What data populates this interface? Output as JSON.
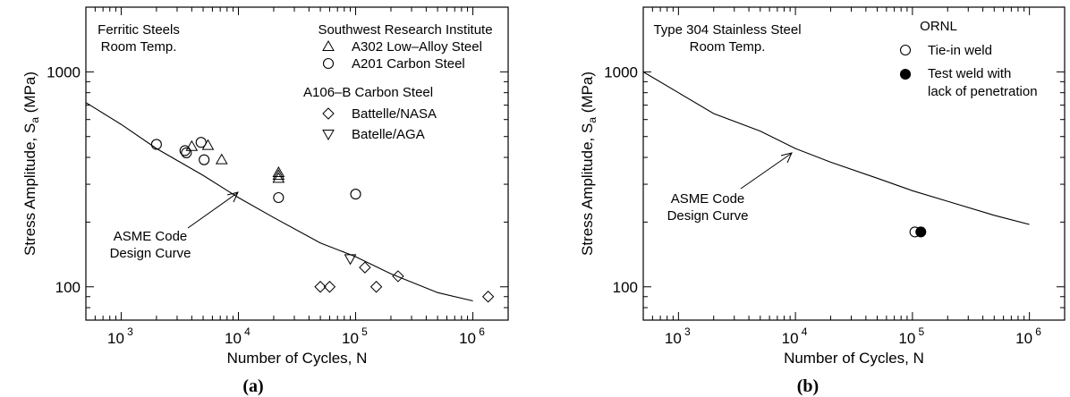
{
  "chart_data": [
    {
      "panel": "(a)",
      "type": "scatter",
      "xlabel": "Number of Cycles, N",
      "ylabel": "Stress Amplitude, S",
      "ylabel_sub": "a",
      "ylabel_unit": " (MPa)",
      "xscale": "log",
      "yscale": "log",
      "xlim": [
        500,
        2000000
      ],
      "ylim": [
        70,
        2000
      ],
      "xticks": [
        {
          "v": 1000,
          "exp": "3"
        },
        {
          "v": 10000,
          "exp": "4"
        },
        {
          "v": 100000,
          "exp": "5"
        },
        {
          "v": 1000000,
          "exp": "6"
        }
      ],
      "yticks": [
        {
          "v": 100,
          "label": "100"
        },
        {
          "v": 1000,
          "label": "1000"
        }
      ],
      "corner_text": [
        "Ferritic Steels",
        "Room Temp."
      ],
      "legend_title": "Southwest Research Institute",
      "legend_subtitle": "A106–B Carbon Steel",
      "curve_label": [
        "ASME Code",
        "Design Curve"
      ],
      "design_curve": {
        "x": [
          500,
          1000,
          2000,
          5000,
          10000,
          20000,
          50000,
          100000,
          200000,
          500000,
          1000000
        ],
        "y": [
          720,
          570,
          440,
          330,
          260,
          210,
          160,
          138,
          115,
          94,
          86
        ]
      },
      "series": [
        {
          "name": "A302 Low–Alloy Steel",
          "marker": "triangle-up",
          "x": [
            4000,
            5500,
            7200,
            22000,
            22000,
            22000
          ],
          "y": [
            450,
            455,
            390,
            330,
            320,
            340
          ]
        },
        {
          "name": "A201 Carbon Steel",
          "marker": "circle",
          "x": [
            2000,
            3500,
            3600,
            4800,
            5100,
            22000,
            100000
          ],
          "y": [
            460,
            430,
            420,
            470,
            390,
            260,
            270
          ]
        },
        {
          "name": "Battelle/NASA",
          "marker": "diamond",
          "x": [
            50000,
            60000,
            120000,
            150000,
            230000,
            1350000
          ],
          "y": [
            100,
            100,
            123,
            100,
            112,
            90
          ]
        },
        {
          "name": "Batelle/AGA",
          "marker": "triangle-down",
          "x": [
            90000
          ],
          "y": [
            135
          ]
        }
      ]
    },
    {
      "panel": "(b)",
      "type": "scatter",
      "xlabel": "Number of Cycles, N",
      "ylabel": "Stress Amplitude, S",
      "ylabel_sub": "a",
      "ylabel_unit": " (MPa)",
      "xscale": "log",
      "yscale": "log",
      "xlim": [
        500,
        2000000
      ],
      "ylim": [
        70,
        2000
      ],
      "xticks": [
        {
          "v": 1000,
          "exp": "3"
        },
        {
          "v": 10000,
          "exp": "4"
        },
        {
          "v": 100000,
          "exp": "5"
        },
        {
          "v": 1000000,
          "exp": "6"
        }
      ],
      "yticks": [
        {
          "v": 100,
          "label": "100"
        },
        {
          "v": 1000,
          "label": "1000"
        }
      ],
      "corner_text": [
        "Type 304 Stainless Steel",
        "Room Temp."
      ],
      "legend_title": "ORNL",
      "curve_label": [
        "ASME Code",
        "Design Curve"
      ],
      "design_curve": {
        "x": [
          500,
          1000,
          2000,
          5000,
          10000,
          20000,
          50000,
          100000,
          200000,
          500000,
          1000000
        ],
        "y": [
          1000,
          800,
          640,
          530,
          440,
          380,
          320,
          280,
          250,
          215,
          195
        ]
      },
      "series": [
        {
          "name": "Tie-in weld",
          "marker": "circle-open",
          "x": [
            105000
          ],
          "y": [
            180
          ]
        },
        {
          "name": "Test weld with lack of penetration",
          "name_lines": [
            "Test weld with",
            "lack of penetration"
          ],
          "marker": "circle-filled",
          "x": [
            118000
          ],
          "y": [
            180
          ]
        }
      ]
    }
  ]
}
